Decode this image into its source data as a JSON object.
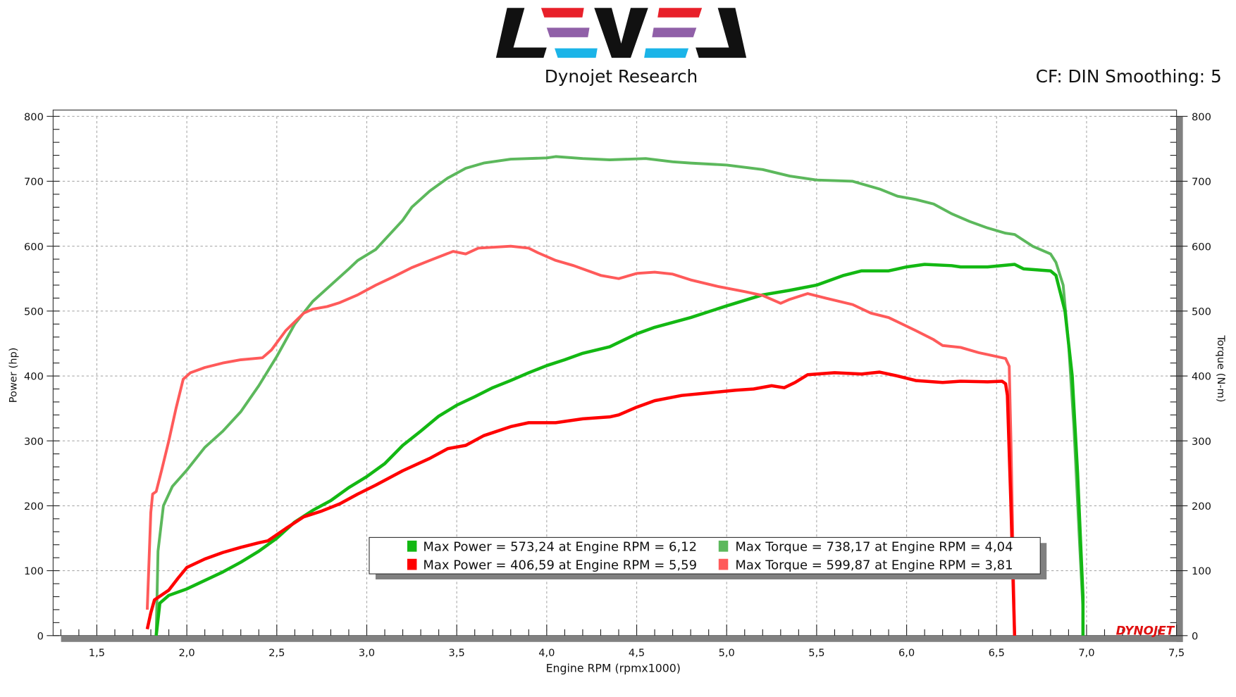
{
  "header": {
    "logo_text": "LEVEL",
    "title": "Dynojet Research",
    "cf_info": "CF: DIN Smoothing: 5",
    "watermark": "DYNOJET"
  },
  "colors": {
    "run1_power": "#13b813",
    "run1_torque": "#5cb85c",
    "run2_power": "#ff0000",
    "run2_torque": "#ff5a5a",
    "logo_red": "#e8202a",
    "logo_purple": "#9060a8",
    "logo_blue": "#1bb4e8"
  },
  "chart_data": {
    "type": "line",
    "title": "",
    "xlabel": "Engine RPM (rpmx1000)",
    "ylabel": "Power (hp)",
    "y2label": "Torque (N-m)",
    "xlim": [
      1.257,
      7.5
    ],
    "ylim": [
      0,
      800
    ],
    "y2lim": [
      0,
      800
    ],
    "grid": true,
    "x_ticks": [
      "1,5",
      "2,0",
      "2,5",
      "3,0",
      "3,5",
      "4,0",
      "4,5",
      "5,0",
      "5,5",
      "6,0",
      "6,5",
      "7,0",
      "7,5"
    ],
    "y_ticks": [
      "0",
      "100",
      "200",
      "300",
      "400",
      "500",
      "600",
      "700",
      "800"
    ],
    "legend": {
      "placement": "bottom-center",
      "entries": [
        "Max Power = 573,24 at Engine RPM = 6,12",
        "Max Torque = 738,17 at Engine RPM = 4,04",
        "Max Power = 406,59 at Engine RPM = 5,59",
        "Max Torque = 599,87 at Engine RPM = 3,81"
      ]
    },
    "series": [
      {
        "key": "run1_torque",
        "axis": "right",
        "x": [
          1.83,
          1.84,
          1.87,
          1.92,
          2.0,
          2.1,
          2.2,
          2.3,
          2.4,
          2.5,
          2.6,
          2.7,
          2.8,
          2.9,
          2.95,
          3.05,
          3.1,
          3.2,
          3.25,
          3.35,
          3.45,
          3.55,
          3.65,
          3.8,
          4.0,
          4.05,
          4.2,
          4.35,
          4.55,
          4.7,
          4.8,
          5.0,
          5.2,
          5.35,
          5.5,
          5.7,
          5.85,
          5.95,
          6.05,
          6.15,
          6.25,
          6.35,
          6.45,
          6.55,
          6.6,
          6.7,
          6.8,
          6.83,
          6.87,
          6.9,
          6.93,
          6.96,
          6.98,
          6.98
        ],
        "y": [
          0,
          130,
          200,
          230,
          255,
          290,
          315,
          345,
          385,
          430,
          480,
          515,
          540,
          565,
          578,
          595,
          610,
          640,
          660,
          685,
          705,
          720,
          728,
          734,
          736,
          738,
          735,
          733,
          735,
          730,
          728,
          725,
          718,
          708,
          702,
          700,
          688,
          677,
          672,
          665,
          650,
          638,
          628,
          620,
          618,
          600,
          588,
          575,
          540,
          450,
          320,
          150,
          40,
          0
        ]
      },
      {
        "key": "run1_power",
        "axis": "left",
        "x": [
          1.83,
          1.85,
          1.9,
          2.0,
          2.1,
          2.2,
          2.3,
          2.4,
          2.5,
          2.6,
          2.7,
          2.8,
          2.9,
          3.0,
          3.1,
          3.2,
          3.3,
          3.4,
          3.5,
          3.6,
          3.7,
          3.8,
          3.9,
          4.0,
          4.1,
          4.2,
          4.35,
          4.5,
          4.6,
          4.8,
          5.0,
          5.2,
          5.35,
          5.5,
          5.65,
          5.75,
          5.9,
          6.0,
          6.1,
          6.25,
          6.3,
          6.45,
          6.6,
          6.65,
          6.8,
          6.83,
          6.88,
          6.92,
          6.95,
          6.98,
          6.98
        ],
        "y": [
          0,
          50,
          62,
          72,
          85,
          98,
          113,
          130,
          150,
          175,
          193,
          208,
          228,
          245,
          265,
          293,
          315,
          338,
          355,
          368,
          382,
          393,
          405,
          416,
          425,
          435,
          445,
          465,
          475,
          490,
          508,
          525,
          532,
          540,
          555,
          562,
          562,
          568,
          572,
          570,
          568,
          568,
          572,
          565,
          562,
          555,
          500,
          400,
          250,
          60,
          0
        ]
      },
      {
        "key": "run2_torque",
        "axis": "right",
        "x": [
          1.78,
          1.8,
          1.81,
          1.83,
          1.86,
          1.9,
          1.94,
          1.98,
          2.02,
          2.1,
          2.2,
          2.3,
          2.42,
          2.47,
          2.55,
          2.65,
          2.7,
          2.78,
          2.85,
          2.95,
          3.05,
          3.15,
          3.25,
          3.35,
          3.48,
          3.55,
          3.62,
          3.8,
          3.9,
          3.95,
          4.05,
          4.15,
          4.3,
          4.4,
          4.5,
          4.6,
          4.7,
          4.8,
          4.95,
          5.1,
          5.2,
          5.3,
          5.35,
          5.45,
          5.55,
          5.7,
          5.8,
          5.9,
          6.05,
          6.15,
          6.2,
          6.3,
          6.4,
          6.5,
          6.55,
          6.57,
          6.58,
          6.6
        ],
        "y": [
          40,
          190,
          218,
          222,
          255,
          300,
          350,
          395,
          405,
          413,
          420,
          425,
          428,
          440,
          470,
          497,
          503,
          507,
          513,
          525,
          540,
          553,
          567,
          578,
          592,
          588,
          597,
          600,
          597,
          590,
          578,
          570,
          555,
          550,
          558,
          560,
          557,
          548,
          538,
          530,
          524,
          512,
          518,
          527,
          520,
          510,
          497,
          490,
          470,
          456,
          447,
          444,
          436,
          430,
          427,
          415,
          300,
          0
        ]
      },
      {
        "key": "run2_power",
        "axis": "left",
        "x": [
          1.78,
          1.8,
          1.82,
          1.9,
          1.95,
          2.0,
          2.1,
          2.2,
          2.3,
          2.4,
          2.45,
          2.55,
          2.65,
          2.75,
          2.85,
          2.95,
          3.05,
          3.2,
          3.35,
          3.45,
          3.55,
          3.65,
          3.8,
          3.9,
          4.05,
          4.2,
          4.35,
          4.4,
          4.5,
          4.6,
          4.75,
          4.9,
          5.05,
          5.15,
          5.25,
          5.32,
          5.38,
          5.45,
          5.6,
          5.75,
          5.85,
          5.95,
          6.05,
          6.2,
          6.3,
          6.45,
          6.53,
          6.55,
          6.56,
          6.58,
          6.6
        ],
        "y": [
          10,
          35,
          55,
          70,
          88,
          105,
          118,
          128,
          136,
          143,
          146,
          165,
          183,
          192,
          203,
          218,
          232,
          254,
          273,
          288,
          293,
          308,
          322,
          328,
          328,
          334,
          337,
          340,
          352,
          362,
          370,
          374,
          378,
          380,
          385,
          382,
          390,
          402,
          405,
          403,
          406,
          400,
          393,
          390,
          392,
          391,
          392,
          388,
          370,
          200,
          0
        ]
      }
    ]
  }
}
